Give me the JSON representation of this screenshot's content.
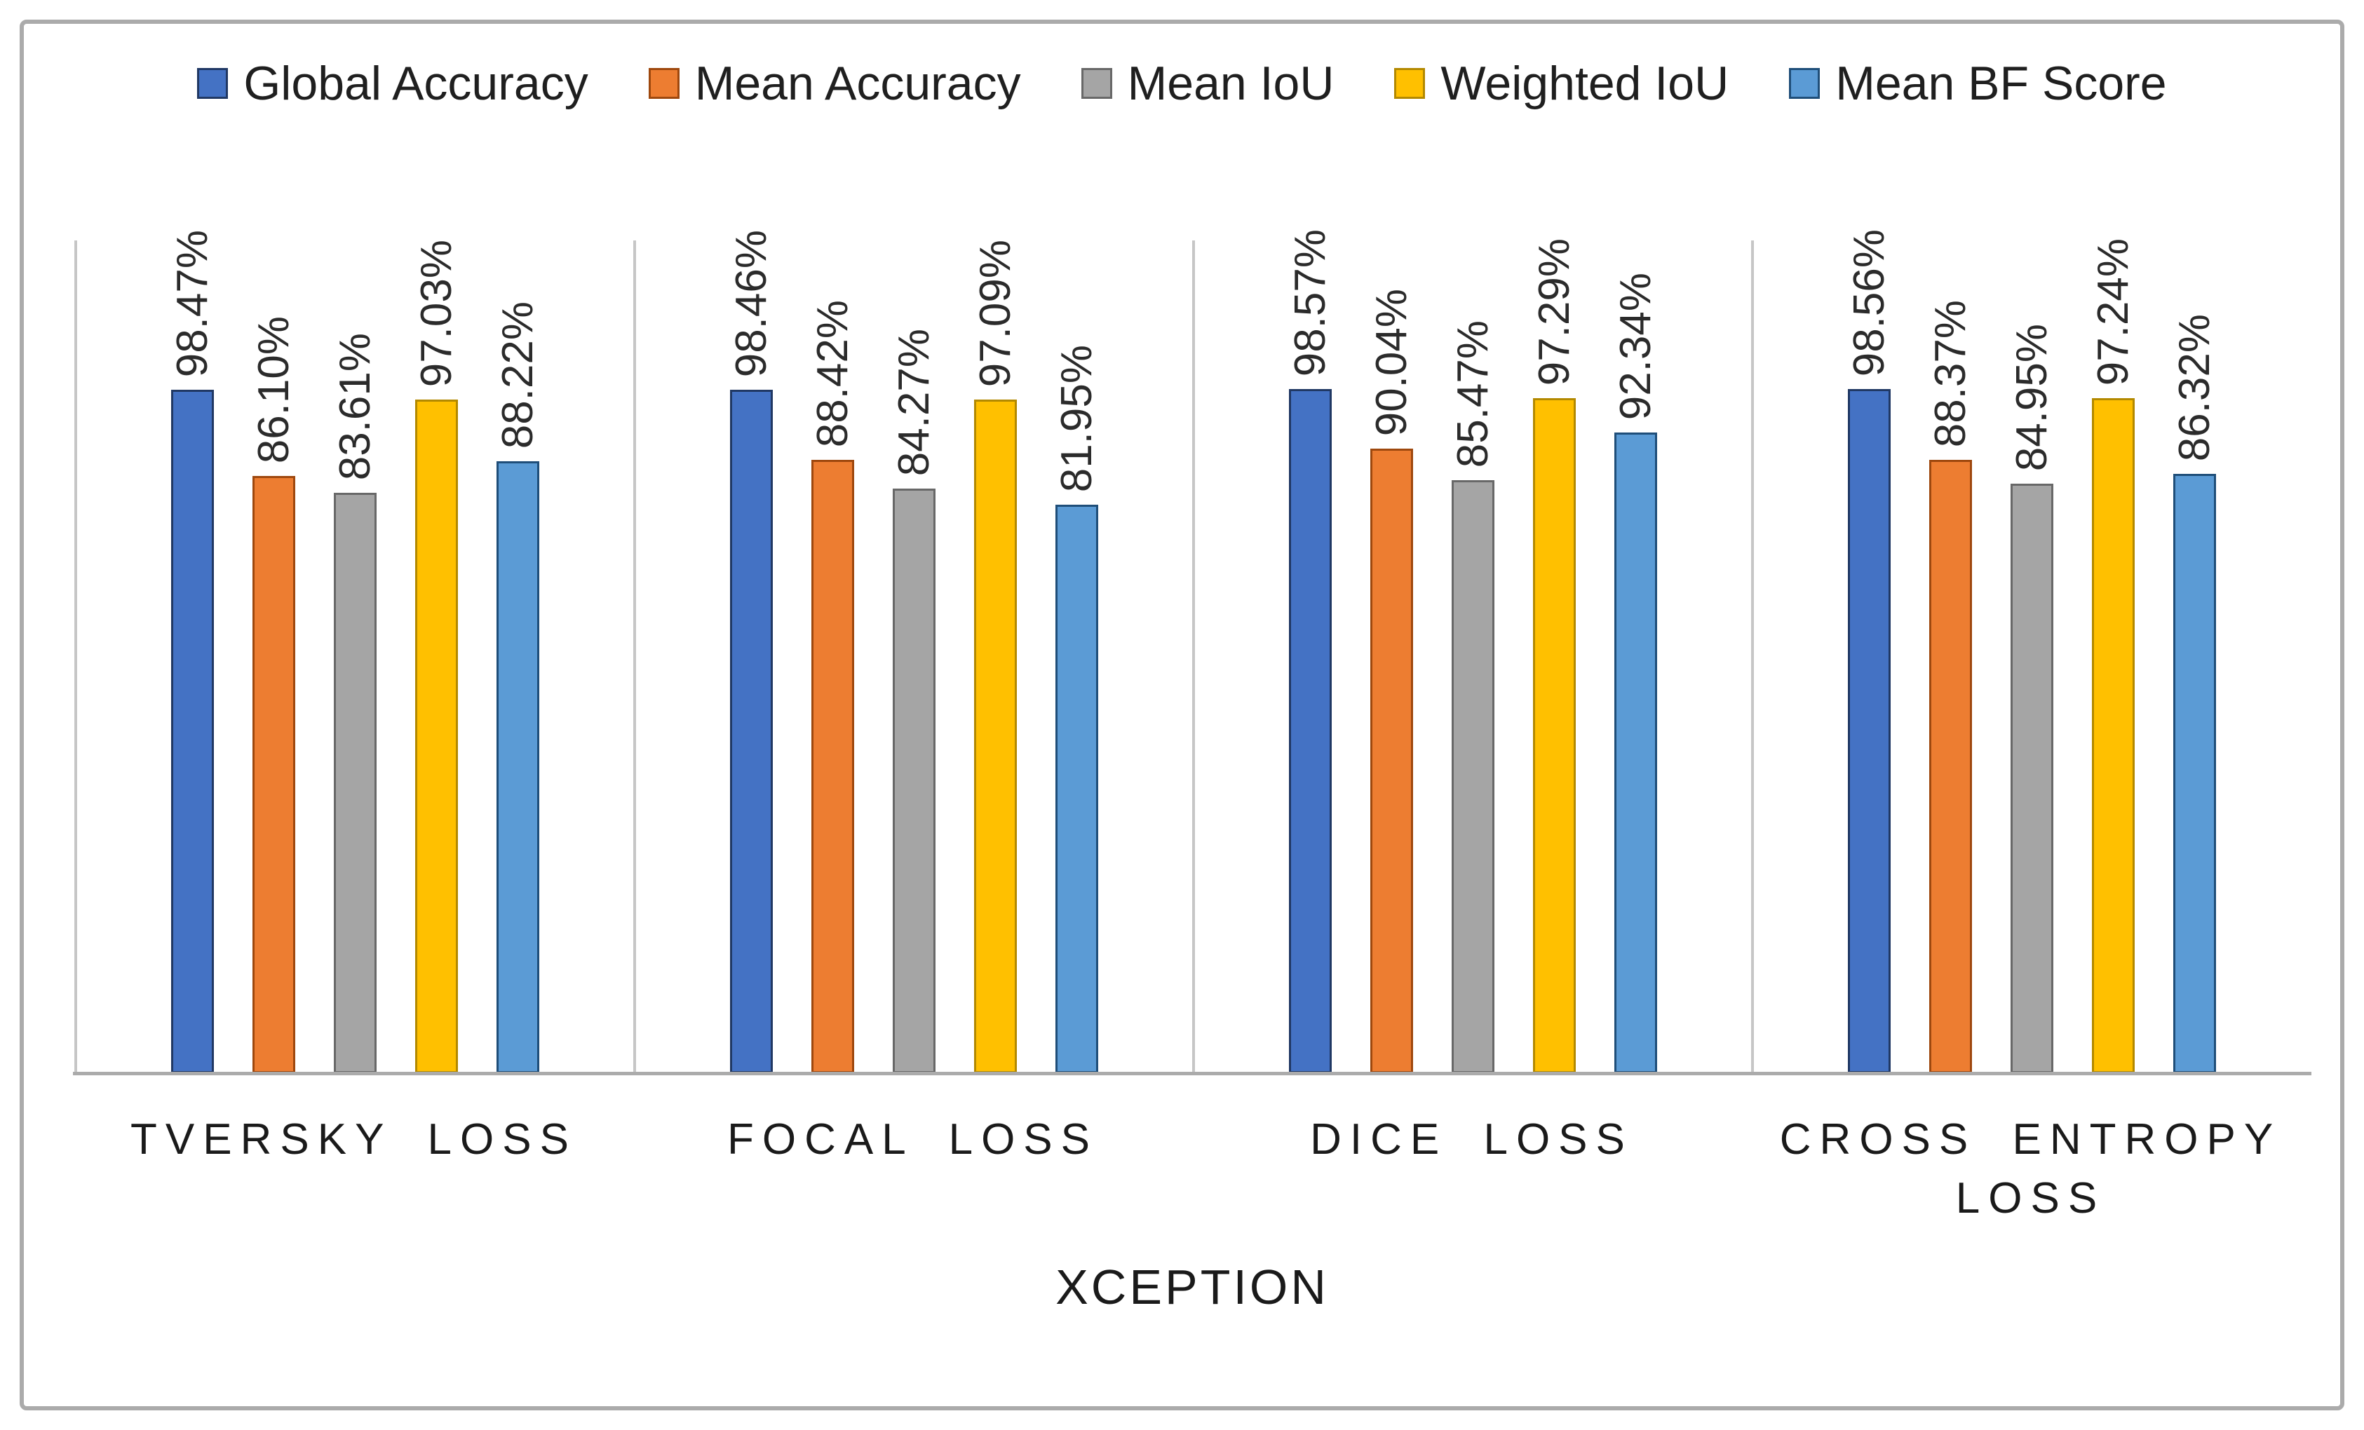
{
  "chart_data": {
    "type": "bar",
    "title": "",
    "categories": [
      "TVERSKY LOSS",
      "FOCAL LOSS",
      "DICE LOSS",
      "CROSS ENTROPY LOSS"
    ],
    "series": [
      {
        "name": "Global Accuracy",
        "fill": "#4472C4",
        "border": "#203864",
        "values": [
          98.47,
          98.46,
          98.57,
          98.56
        ]
      },
      {
        "name": "Mean Accuracy",
        "fill": "#ED7D31",
        "border": "#9E480E",
        "values": [
          86.1,
          88.42,
          90.04,
          88.37
        ]
      },
      {
        "name": "Mean IoU",
        "fill": "#A5A5A5",
        "border": "#686868",
        "values": [
          83.61,
          84.27,
          85.47,
          84.95
        ]
      },
      {
        "name": "Weighted IoU",
        "fill": "#FFC000",
        "border": "#B38900",
        "values": [
          97.03,
          97.09,
          97.29,
          97.24
        ]
      },
      {
        "name": "Mean BF Score",
        "fill": "#5B9BD5",
        "border": "#1F4E79",
        "values": [
          88.22,
          81.95,
          92.34,
          86.32
        ]
      }
    ],
    "value_label_format": "0.00%",
    "value_label_rotation": -90,
    "xlabel": "XCEPTION",
    "ylabel": "",
    "ylim": [
      0,
      120
    ],
    "grid": false,
    "legend_position": "top",
    "colors": {
      "axis_baseline": "#ABABAB",
      "panel_separator": "#C6C6C6",
      "frame_border": "#ABABAB",
      "text": "#1F1F1F",
      "value_label_text": "#2B2B2B"
    }
  }
}
